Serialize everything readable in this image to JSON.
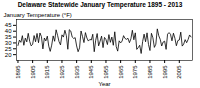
{
  "chart_data": {
    "type": "line",
    "title": "Delaware Statewide January Temperature 1895 - 2013",
    "xlabel": "Year",
    "ylabel": "January Temperature (°F)",
    "x": [
      1895,
      1896,
      1897,
      1898,
      1899,
      1900,
      1901,
      1902,
      1903,
      1904,
      1905,
      1906,
      1907,
      1908,
      1909,
      1910,
      1911,
      1912,
      1913,
      1914,
      1915,
      1916,
      1917,
      1918,
      1919,
      1920,
      1921,
      1922,
      1923,
      1924,
      1925,
      1926,
      1927,
      1928,
      1929,
      1930,
      1931,
      1932,
      1933,
      1934,
      1935,
      1936,
      1937,
      1938,
      1939,
      1940,
      1941,
      1942,
      1943,
      1944,
      1945,
      1946,
      1947,
      1948,
      1949,
      1950,
      1951,
      1952,
      1953,
      1954,
      1955,
      1956,
      1957,
      1958,
      1959,
      1960,
      1961,
      1962,
      1963,
      1964,
      1965,
      1966,
      1967,
      1968,
      1969,
      1970,
      1971,
      1972,
      1973,
      1974,
      1975,
      1976,
      1977,
      1978,
      1979,
      1980,
      1981,
      1982,
      1983,
      1984,
      1985,
      1986,
      1987,
      1988,
      1989,
      1990,
      1991,
      1992,
      1993,
      1994,
      1995,
      1996,
      1997,
      1998,
      1999,
      2000,
      2001,
      2002,
      2003,
      2004,
      2005,
      2006,
      2007,
      2008,
      2009,
      2010,
      2011,
      2012,
      2013
    ],
    "values": [
      27.8,
      32.4,
      30.5,
      36.2,
      28.0,
      34.1,
      30.9,
      38.2,
      31.3,
      27.5,
      28.8,
      36.3,
      31.0,
      38.1,
      30.2,
      38.5,
      35.4,
      24.9,
      34.2,
      31.7,
      35.8,
      27.2,
      22.8,
      28.1,
      36.0,
      31.4,
      41.2,
      36.5,
      31.1,
      28.3,
      36.9,
      35.0,
      40.8,
      36.2,
      24.6,
      41.3,
      40.1,
      35.0,
      33.8,
      34.5,
      27.4,
      22.5,
      25.8,
      40.2,
      35.5,
      30.3,
      38.8,
      34.2,
      31.6,
      33.0,
      32.5,
      37.4,
      22.5,
      32.3,
      38.0,
      27.5,
      31.5,
      35.8,
      26.0,
      34.7,
      32.9,
      28.6,
      37.1,
      30.5,
      35.0,
      28.0,
      39.5,
      26.8,
      23.0,
      31.8,
      30.0,
      31.6,
      36.2,
      33.8,
      33.1,
      34.0,
      30.2,
      33.5,
      40.8,
      32.7,
      38.6,
      24.5,
      26.0,
      28.0,
      21.0,
      31.2,
      37.5,
      31.0,
      38.6,
      28.6,
      23.5,
      38.2,
      34.4,
      26.2,
      28.9,
      42.0,
      36.1,
      33.0,
      27.4,
      30.8,
      31.5,
      24.5,
      37.5,
      38.8,
      37.4,
      31.8,
      38.3,
      34.0,
      27.6,
      32.0,
      32.5,
      39.2,
      27.3,
      29.0,
      32.8,
      30.2,
      32.9,
      36.8,
      35.1
    ],
    "color": "#000000",
    "xlim": [
      1894,
      2014
    ],
    "xticks": [
      1895,
      1905,
      1915,
      1925,
      1935,
      1945,
      1955,
      1965,
      1975,
      1985,
      1995,
      2005
    ],
    "ylim": [
      15,
      50
    ],
    "yticks": [
      20,
      25,
      30,
      35,
      40,
      45
    ],
    "grid": false
  }
}
